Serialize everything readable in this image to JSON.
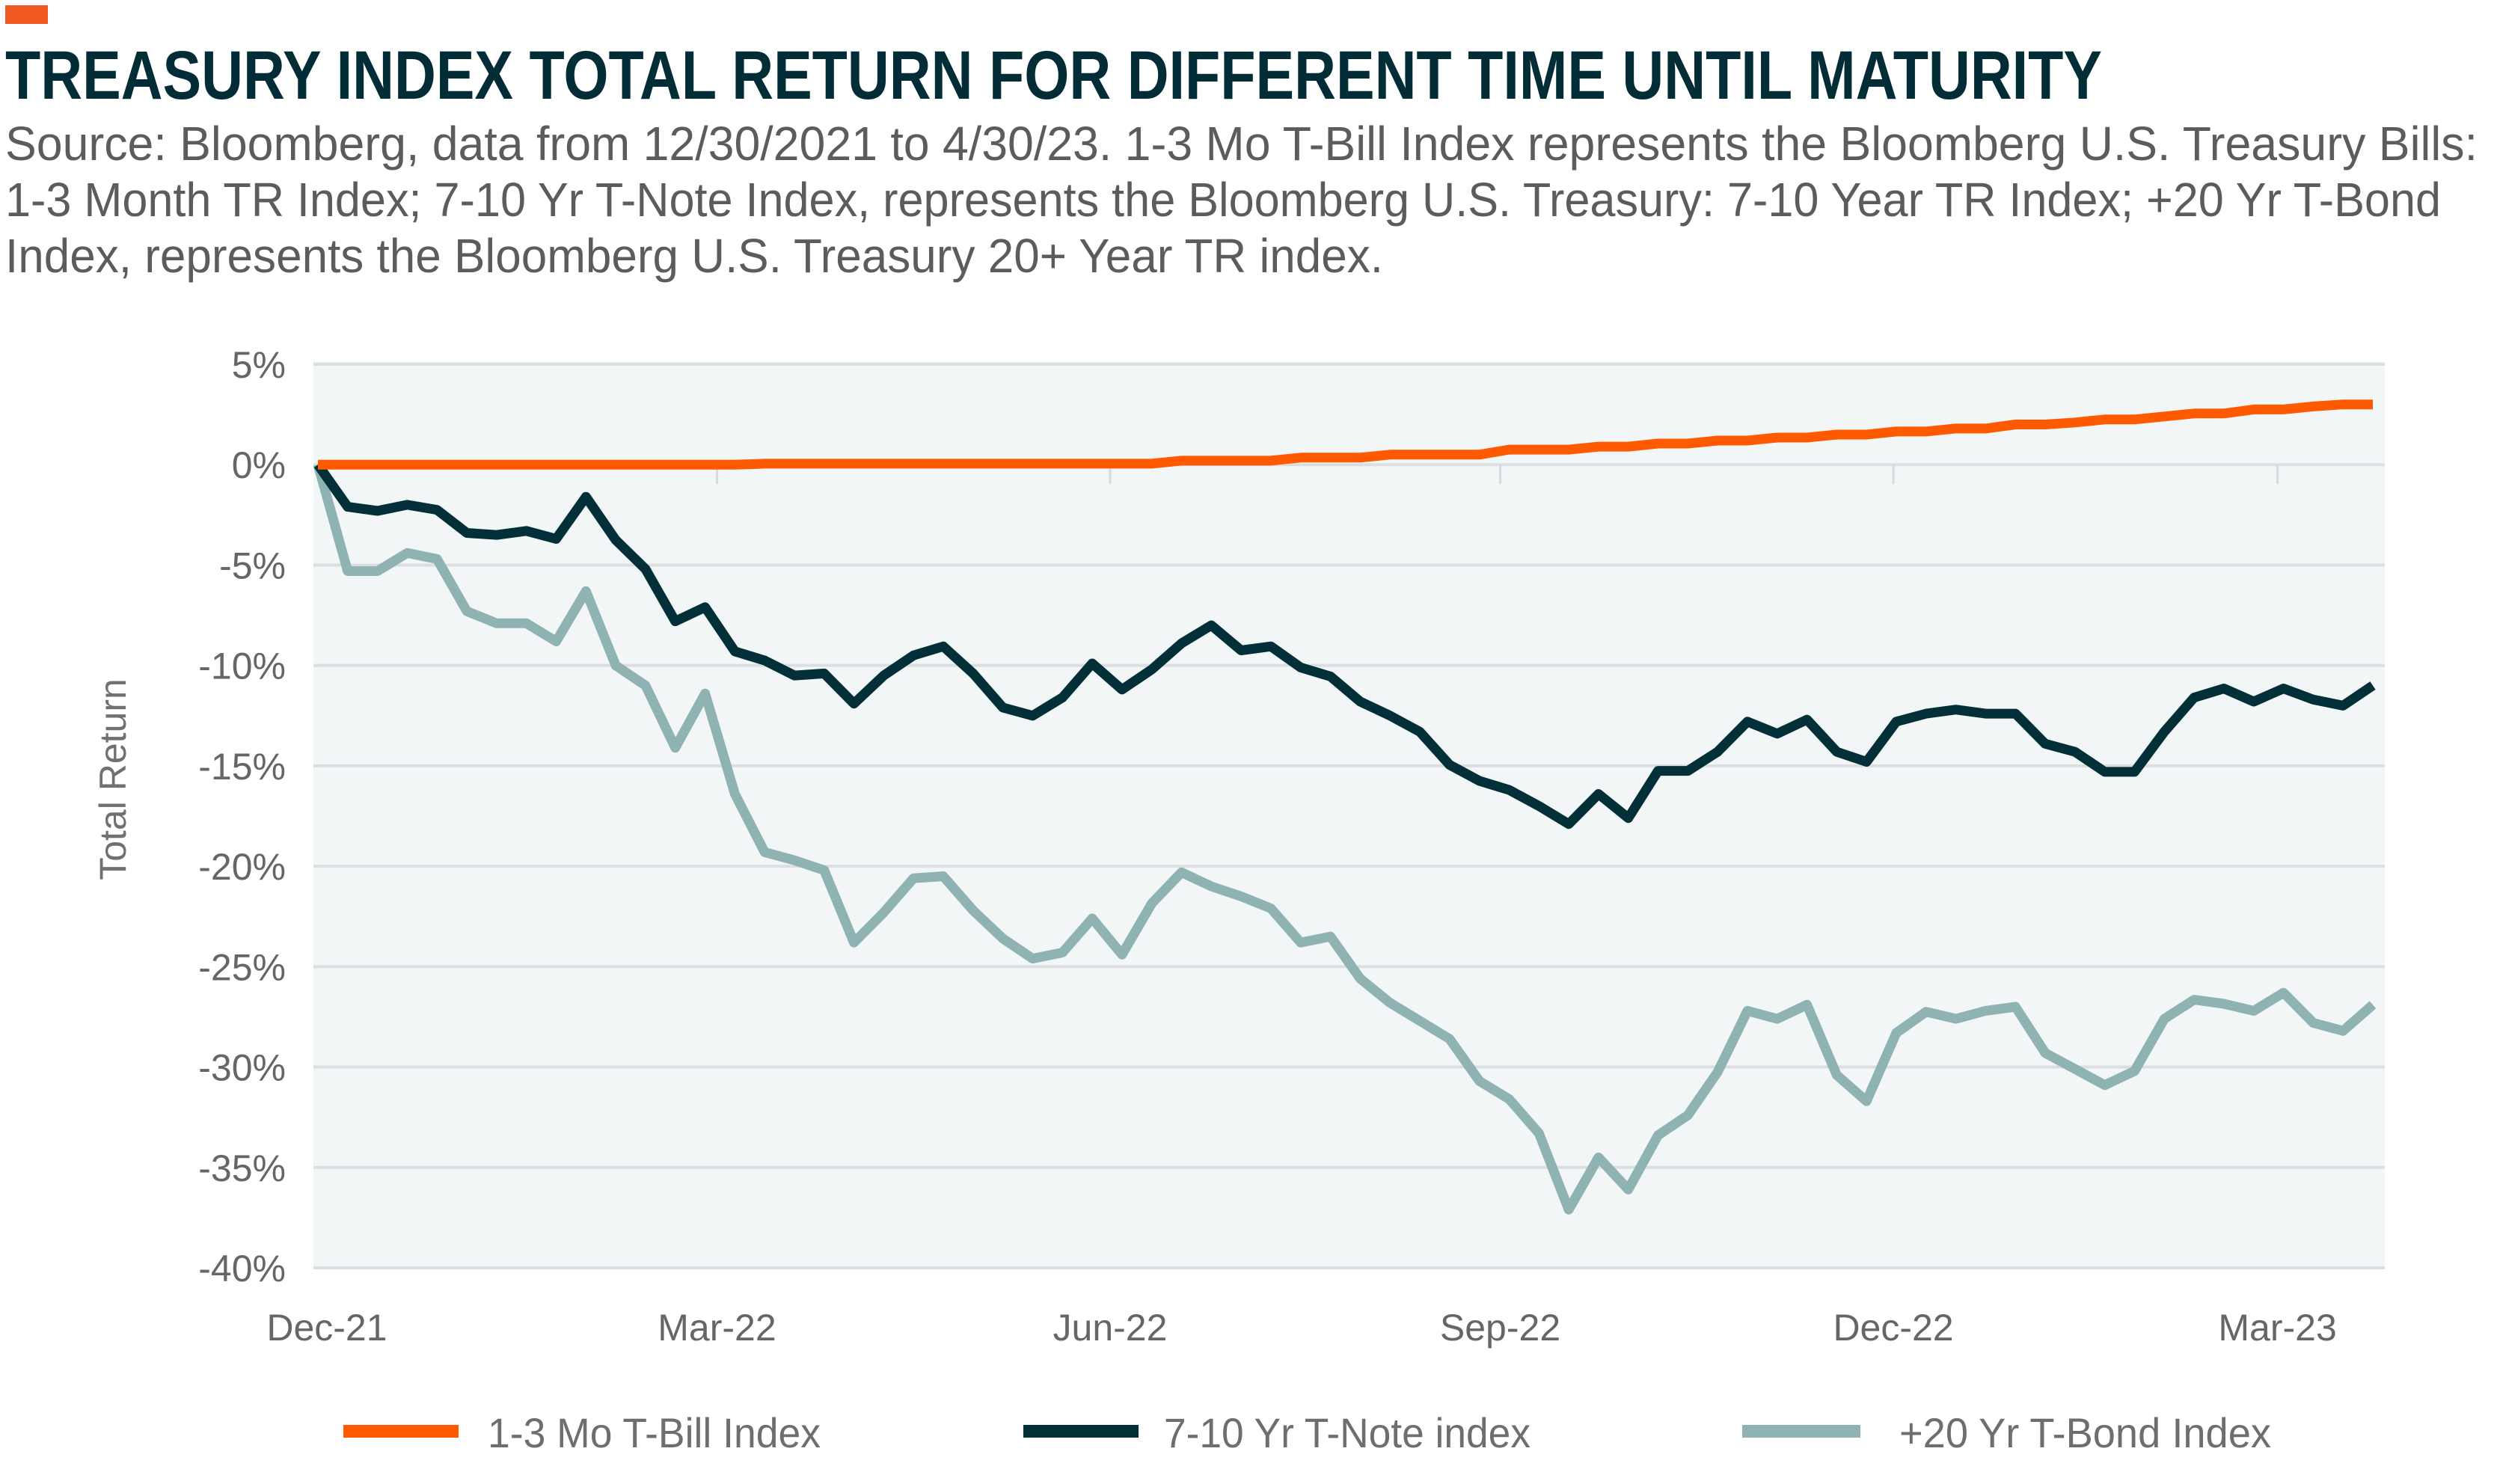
{
  "header": {
    "accent_color": "#f15a22",
    "title": "TREASURY INDEX TOTAL RETURN FOR DIFFERENT TIME UNTIL MATURITY",
    "subtitle_lines": [
      "Source: Bloomberg, data from 12/30/2021 to 4/30/23. 1-3 Mo T-Bill Index represents the Bloomberg U.S. Treasury Bills:",
      "1-3 Month TR Index; 7-10 Yr T-Note Index, represents the Bloomberg U.S. Treasury: 7-10 Year TR Index; +20 Yr T-Bond",
      "Index, represents the Bloomberg U.S. Treasury 20+ Year TR index."
    ]
  },
  "chart_data": {
    "type": "line",
    "title": "TREASURY INDEX TOTAL RETURN FOR DIFFERENT TIME UNTIL MATURITY",
    "xlabel": "",
    "ylabel": "Total Return",
    "x_frequency": "weekly",
    "x_start": "Dec-21",
    "x_tick_labels": [
      "Dec-21",
      "Mar-22",
      "Jun-22",
      "Sep-22",
      "Dec-22",
      "Mar-23"
    ],
    "y_tick_labels": [
      "5%",
      "0%",
      "-5%",
      "-10%",
      "-15%",
      "-20%",
      "-25%",
      "-30%",
      "-35%",
      "-40%"
    ],
    "y_ticks": [
      5,
      0,
      -5,
      -10,
      -15,
      -20,
      -25,
      -30,
      -35,
      -40
    ],
    "ylim": [
      -40,
      5
    ],
    "y_unit": "%",
    "grid": "horizontal",
    "legend_position": "bottom",
    "series": [
      {
        "name": "1-3 Mo T-Bill Index",
        "color": "#ff5a00",
        "values": [
          0,
          0,
          0,
          0,
          0,
          0,
          0,
          0,
          0,
          0,
          0,
          0,
          0,
          0,
          0,
          0.05,
          0.05,
          0.05,
          0.05,
          0.05,
          0.05,
          0.05,
          0.05,
          0.05,
          0.05,
          0.05,
          0.05,
          0.05,
          0.05,
          0.2,
          0.2,
          0.2,
          0.2,
          0.35,
          0.35,
          0.35,
          0.5,
          0.5,
          0.5,
          0.5,
          0.75,
          0.75,
          0.75,
          0.9,
          0.9,
          1.05,
          1.05,
          1.2,
          1.2,
          1.35,
          1.35,
          1.5,
          1.5,
          1.65,
          1.65,
          1.8,
          1.8,
          2.0,
          2.0,
          2.1,
          2.25,
          2.25,
          2.4,
          2.55,
          2.55,
          2.75,
          2.75,
          2.9,
          3.0,
          3.0
        ]
      },
      {
        "name": "7-10 Yr T-Note index",
        "color": "#022f38",
        "values": [
          0,
          -2.1,
          -2.3,
          -2.0,
          -2.25,
          -3.4,
          -3.5,
          -3.3,
          -3.7,
          -1.6,
          -3.75,
          -5.2,
          -7.8,
          -7.1,
          -9.3,
          -9.75,
          -10.5,
          -10.4,
          -11.9,
          -10.5,
          -9.5,
          -9.05,
          -10.4,
          -12.1,
          -12.5,
          -11.6,
          -9.9,
          -11.2,
          -10.2,
          -8.9,
          -8.0,
          -9.25,
          -9.05,
          -10.1,
          -10.55,
          -11.8,
          -12.5,
          -13.3,
          -14.95,
          -15.75,
          -16.2,
          -17.0,
          -17.9,
          -16.4,
          -17.6,
          -15.25,
          -15.25,
          -14.3,
          -12.8,
          -13.4,
          -12.7,
          -14.3,
          -14.8,
          -12.8,
          -12.4,
          -12.2,
          -12.4,
          -12.4,
          -13.9,
          -14.3,
          -15.3,
          -15.3,
          -13.3,
          -11.6,
          -11.15,
          -11.8,
          -11.15,
          -11.7,
          -12.0,
          -11.0
        ]
      },
      {
        "name": "+20 Yr T-Bond Index",
        "color": "#8fb3b2",
        "values": [
          0,
          -5.3,
          -5.3,
          -4.4,
          -4.7,
          -7.3,
          -7.9,
          -7.9,
          -8.8,
          -6.3,
          -10.0,
          -11.0,
          -14.1,
          -11.4,
          -16.4,
          -19.3,
          -19.7,
          -20.2,
          -23.8,
          -22.3,
          -20.6,
          -20.5,
          -22.2,
          -23.6,
          -24.6,
          -24.3,
          -22.6,
          -24.4,
          -21.85,
          -20.3,
          -21.0,
          -21.5,
          -22.1,
          -23.8,
          -23.5,
          -25.6,
          -26.8,
          -27.7,
          -28.6,
          -30.7,
          -31.6,
          -33.3,
          -37.1,
          -34.5,
          -36.1,
          -33.4,
          -32.4,
          -30.25,
          -27.2,
          -27.6,
          -26.9,
          -30.4,
          -31.7,
          -28.3,
          -27.25,
          -27.6,
          -27.2,
          -27.0,
          -29.3,
          -30.1,
          -30.9,
          -30.2,
          -27.6,
          -26.65,
          -26.85,
          -27.2,
          -26.3,
          -27.8,
          -28.2,
          -26.9
        ]
      }
    ]
  },
  "legend": {
    "items": [
      {
        "label": "1-3 Mo T-Bill Index",
        "color": "#ff5a00"
      },
      {
        "label": "7-10 Yr T-Note index",
        "color": "#022f38"
      },
      {
        "label": "+20 Yr T-Bond Index",
        "color": "#8fb3b2"
      }
    ]
  }
}
